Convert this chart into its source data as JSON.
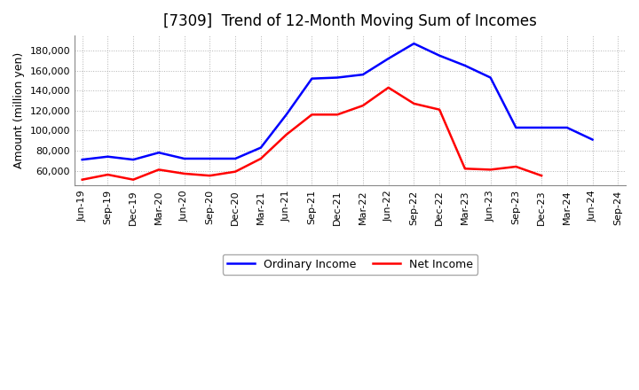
{
  "title": "[7309]  Trend of 12-Month Moving Sum of Incomes",
  "ylabel": "Amount (million yen)",
  "labels": [
    "Jun-19",
    "Sep-19",
    "Dec-19",
    "Mar-20",
    "Jun-20",
    "Sep-20",
    "Dec-20",
    "Mar-21",
    "Jun-21",
    "Sep-21",
    "Dec-21",
    "Mar-22",
    "Jun-22",
    "Sep-22",
    "Dec-22",
    "Mar-23",
    "Jun-23",
    "Sep-23",
    "Dec-23",
    "Mar-24",
    "Jun-24",
    "Sep-24"
  ],
  "ordinary_income": [
    71000,
    74000,
    71000,
    78000,
    72000,
    72000,
    72000,
    83000,
    116000,
    152000,
    153000,
    156000,
    172000,
    187000,
    175000,
    165000,
    153000,
    103000,
    103000,
    103000,
    91000,
    null
  ],
  "net_income": [
    51000,
    56000,
    51000,
    61000,
    57000,
    55000,
    59000,
    72000,
    96000,
    116000,
    116000,
    125000,
    143000,
    127000,
    121000,
    62000,
    61000,
    64000,
    55000,
    null,
    null,
    null
  ],
  "ordinary_color": "#0000ff",
  "net_color": "#ff0000",
  "background_color": "#ffffff",
  "grid_color": "#aaaaaa",
  "ylim": [
    45000,
    195000
  ],
  "yticks": [
    60000,
    80000,
    100000,
    120000,
    140000,
    160000,
    180000
  ],
  "legend_labels": [
    "Ordinary Income",
    "Net Income"
  ],
  "title_fontsize": 12,
  "axis_fontsize": 8,
  "legend_fontsize": 9,
  "linewidth": 1.8
}
